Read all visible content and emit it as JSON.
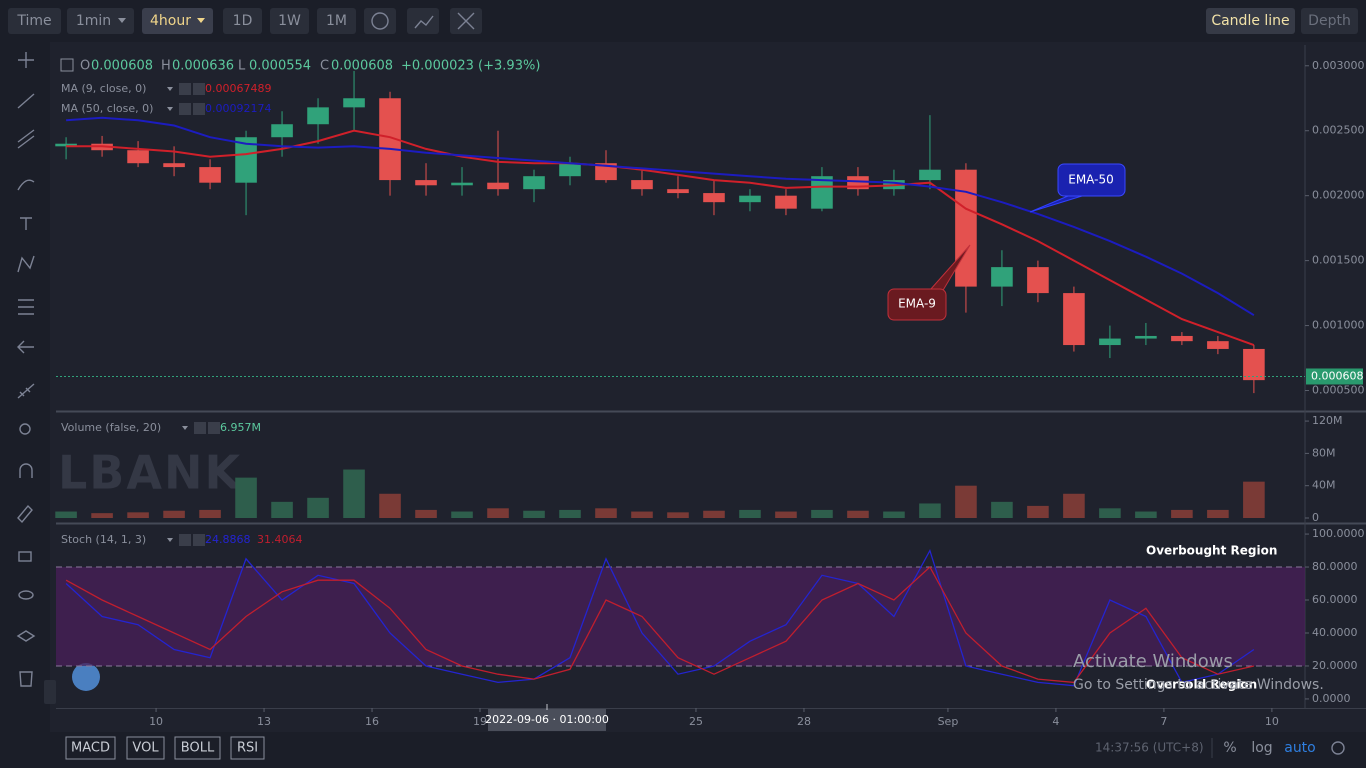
{
  "toolbar": {
    "buttons": [
      "Time",
      "1min",
      "4hour",
      "1D",
      "1W",
      "1M"
    ],
    "right_buttons": [
      "Candle line",
      "Depth"
    ]
  },
  "watermark": "LBANK",
  "system_notice": [
    "Activate Windows",
    "Go to Settings to activate Windows."
  ],
  "chart_data": [
    {
      "type": "candlestick",
      "ohlc_header": [
        {
          "key": "O",
          "value": "0.000608"
        },
        {
          "key": "H",
          "value": "0.000636"
        },
        {
          "key": "L",
          "value": "0.000554"
        },
        {
          "key": "C",
          "value": "0.000608"
        }
      ],
      "change": "+0.000023 (+3.93%)",
      "up_color": "#30a27a",
      "down_color": "#e4514f",
      "x": [
        7.5,
        8.5,
        9.5,
        10.5,
        11.5,
        12.5,
        13.5,
        14.5,
        15.5,
        16.5,
        17.5,
        18.5,
        19.5,
        20.5,
        21.5,
        22.5,
        23.5,
        24.5,
        25.5,
        26.5,
        27.5,
        28.5,
        29.5,
        30.5,
        31.5,
        32.5,
        33.5,
        34.5,
        35.5,
        36.5,
        37.5,
        38.5,
        39.5,
        40.5
      ],
      "open": [
        0.00238,
        0.0024,
        0.00235,
        0.00225,
        0.00222,
        0.0021,
        0.00245,
        0.00255,
        0.00268,
        0.00275,
        0.00212,
        0.00208,
        0.0021,
        0.00205,
        0.00215,
        0.00225,
        0.00212,
        0.00205,
        0.00202,
        0.00195,
        0.002,
        0.0019,
        0.00215,
        0.00205,
        0.00212,
        0.0022,
        0.0013,
        0.00145,
        0.00125,
        0.00085,
        0.0009,
        0.00092,
        0.00088,
        0.00082
      ],
      "high": [
        0.00245,
        0.00246,
        0.00242,
        0.00238,
        0.00228,
        0.0025,
        0.00265,
        0.00275,
        0.00296,
        0.0028,
        0.00225,
        0.00222,
        0.0025,
        0.0022,
        0.0023,
        0.00235,
        0.0022,
        0.00215,
        0.00212,
        0.00205,
        0.00205,
        0.00222,
        0.00222,
        0.0022,
        0.00262,
        0.00225,
        0.00158,
        0.0015,
        0.0013,
        0.001,
        0.00102,
        0.00095,
        0.00092,
        0.00085
      ],
      "low": [
        0.00228,
        0.0023,
        0.00222,
        0.00215,
        0.00205,
        0.00185,
        0.0023,
        0.0024,
        0.0025,
        0.002,
        0.002,
        0.002,
        0.002,
        0.00195,
        0.00208,
        0.0021,
        0.002,
        0.00198,
        0.00185,
        0.00188,
        0.00185,
        0.00188,
        0.002,
        0.002,
        0.00205,
        0.0011,
        0.00115,
        0.00118,
        0.0008,
        0.00075,
        0.00085,
        0.00085,
        0.00078,
        0.00048
      ],
      "close": [
        0.0024,
        0.00235,
        0.00225,
        0.00222,
        0.0021,
        0.00245,
        0.00255,
        0.00268,
        0.00275,
        0.00212,
        0.00208,
        0.0021,
        0.00205,
        0.00215,
        0.00225,
        0.00212,
        0.00205,
        0.00202,
        0.00195,
        0.002,
        0.0019,
        0.00215,
        0.00205,
        0.00212,
        0.0022,
        0.0013,
        0.00145,
        0.00125,
        0.00085,
        0.0009,
        0.00092,
        0.00088,
        0.00082,
        0.00058
      ],
      "series": [
        {
          "name": "MA (9, close, 0)",
          "color": "#d0202a",
          "value_label": "0.00067489",
          "values": [
            0.00238,
            0.00238,
            0.00236,
            0.00234,
            0.0023,
            0.00232,
            0.00236,
            0.00242,
            0.0025,
            0.00245,
            0.00236,
            0.0023,
            0.00226,
            0.00225,
            0.00225,
            0.00223,
            0.0022,
            0.00216,
            0.00212,
            0.0021,
            0.00206,
            0.00207,
            0.00207,
            0.00208,
            0.0021,
            0.0019,
            0.00178,
            0.00165,
            0.0015,
            0.00135,
            0.0012,
            0.00105,
            0.00095,
            0.00085
          ]
        },
        {
          "name": "MA (50, close, 0)",
          "color": "#1c1cc0",
          "value_label": "0.00092174",
          "values": [
            0.00258,
            0.0026,
            0.00258,
            0.00254,
            0.00245,
            0.0024,
            0.00238,
            0.00237,
            0.00238,
            0.00236,
            0.00233,
            0.00231,
            0.00229,
            0.00227,
            0.00225,
            0.00223,
            0.00221,
            0.00219,
            0.00217,
            0.00215,
            0.00213,
            0.00212,
            0.00211,
            0.0021,
            0.00207,
            0.00203,
            0.00195,
            0.00186,
            0.00176,
            0.00165,
            0.00153,
            0.0014,
            0.00125,
            0.00108
          ]
        }
      ],
      "last_price": {
        "value": 0.000608,
        "label": "0.000608"
      },
      "annotations": [
        "EMA-50",
        "EMA-9"
      ],
      "ylim": [
        0.00035,
        0.00316
      ],
      "yticks": [
        {
          "value": 0.0005,
          "label": "0.000500"
        },
        {
          "value": 0.001,
          "label": "0.001000"
        },
        {
          "value": 0.0015,
          "label": "0.001500"
        },
        {
          "value": 0.002,
          "label": "0.002000"
        },
        {
          "value": 0.0025,
          "label": "0.002500"
        },
        {
          "value": 0.003,
          "label": "0.003000"
        }
      ],
      "xlim": [
        7.22,
        41.92
      ],
      "xticks": [
        10,
        13,
        16,
        19,
        25,
        28,
        {
          "value": 32,
          "label": "Sep"
        },
        {
          "value": 35,
          "label": "4"
        },
        {
          "value": 38,
          "label": "7"
        },
        {
          "value": 41,
          "label": "10"
        }
      ],
      "crosshair_label": "2022-09-06 · 01:00:00"
    },
    {
      "type": "bar",
      "title": "Volume (false, 20)",
      "value_label": "6.957M",
      "up_color": "#2e5e4c",
      "down_color": "#7a3a36",
      "values": [
        8000000,
        6000000,
        7000000,
        9000000,
        10000000,
        50000000,
        20000000,
        25000000,
        60000000,
        30000000,
        10000000,
        8000000,
        12000000,
        9000000,
        10000000,
        12000000,
        8000000,
        7000000,
        9000000,
        10000000,
        8000000,
        10000000,
        9000000,
        8000000,
        18000000,
        40000000,
        20000000,
        15000000,
        30000000,
        12000000,
        8000000,
        10000000,
        10000000,
        45000000
      ],
      "ylim": [
        0,
        130000000
      ],
      "yticks": [
        0,
        {
          "value": 40000000,
          "label": "40M"
        },
        {
          "value": 80000000,
          "label": "80M"
        },
        {
          "value": 120000000,
          "label": "120M"
        }
      ]
    },
    {
      "type": "line",
      "title": "Stoch (14, 1, 3)",
      "series": [
        {
          "color": "#2424d0",
          "value_label": "24.8868",
          "values": [
            70,
            50,
            45,
            30,
            25,
            85,
            60,
            75,
            70,
            40,
            20,
            15,
            10,
            12,
            25,
            85,
            40,
            15,
            20,
            35,
            45,
            75,
            70,
            50,
            90,
            20,
            15,
            10,
            8,
            60,
            50,
            10,
            15,
            30
          ]
        },
        {
          "color": "#c01e2e",
          "value_label": "31.4064",
          "values": [
            72,
            60,
            50,
            40,
            30,
            50,
            65,
            72,
            72,
            55,
            30,
            20,
            15,
            12,
            18,
            60,
            50,
            25,
            15,
            25,
            35,
            60,
            70,
            60,
            80,
            40,
            20,
            12,
            10,
            40,
            55,
            25,
            15,
            20
          ]
        }
      ],
      "bands": [
        20,
        80
      ],
      "annotations": [
        "Overbought Region",
        "Oversold Region"
      ],
      "ylim": [
        -5.5,
        105.5
      ],
      "yticks": [
        {
          "value": 0,
          "label": "0.0000"
        },
        {
          "value": 20,
          "label": "20.0000"
        },
        {
          "value": 40,
          "label": "40.0000"
        },
        {
          "value": 60,
          "label": "60.0000"
        },
        {
          "value": 80,
          "label": "80.0000"
        },
        {
          "value": 100,
          "label": "100.0000"
        }
      ]
    }
  ],
  "bottom_bar": {
    "indicators": [
      "MACD",
      "VOL",
      "BOLL",
      "RSI"
    ],
    "clock": "14:37:56 (UTC+8)",
    "options": [
      "%",
      "log",
      "auto"
    ]
  }
}
